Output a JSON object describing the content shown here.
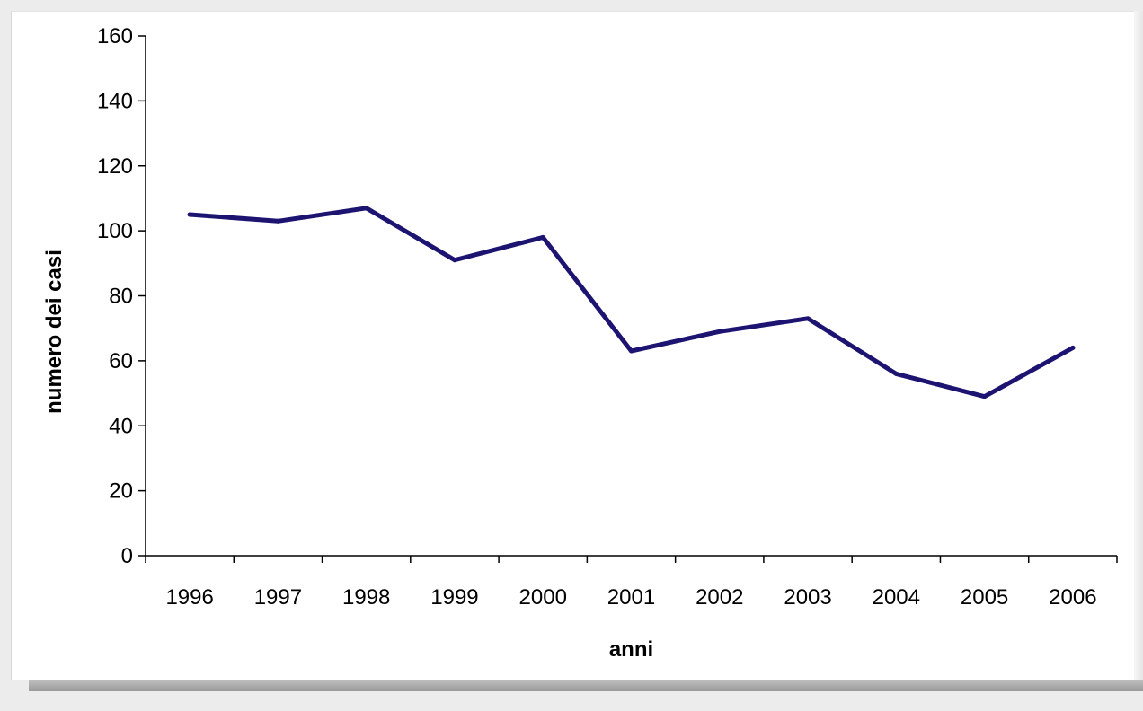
{
  "chart_data": {
    "type": "line",
    "title": "",
    "xlabel": "anni",
    "ylabel": "numero dei casi",
    "categories": [
      "1996",
      "1997",
      "1998",
      "1999",
      "2000",
      "2001",
      "2002",
      "2003",
      "2004",
      "2005",
      "2006"
    ],
    "series": [
      {
        "values": [
          105,
          103,
          107,
          91,
          98,
          63,
          69,
          73,
          56,
          49,
          64
        ],
        "color": "#1c1470"
      }
    ],
    "ylim": [
      0,
      160
    ],
    "yticks": [
      0,
      20,
      40,
      60,
      80,
      100,
      120,
      140,
      160
    ],
    "grid": false,
    "legend": "none"
  }
}
